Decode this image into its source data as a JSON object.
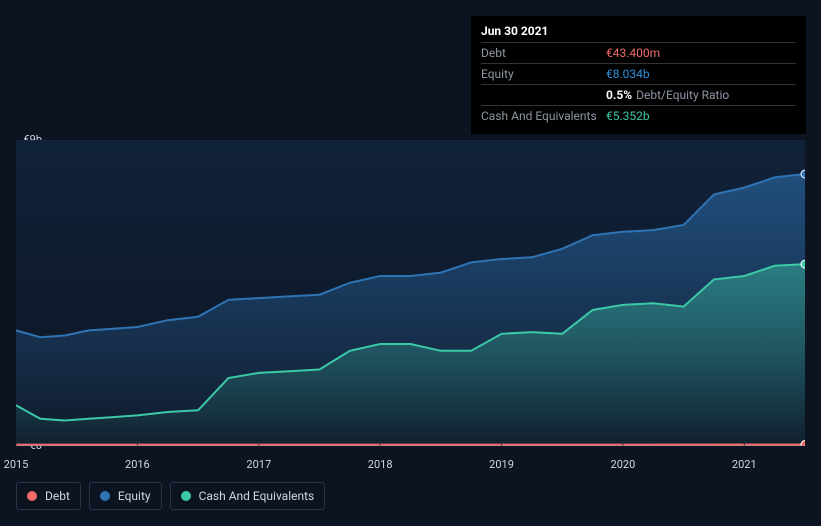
{
  "tooltip": {
    "title": "Jun 30 2021",
    "rows": [
      {
        "label": "Debt",
        "value": "€43.400m",
        "cls": "debt"
      },
      {
        "label": "Equity",
        "value": "€8.034b",
        "cls": "equity"
      },
      {
        "label": "",
        "value": "0.5%",
        "unit": "Debt/Equity Ratio",
        "cls": ""
      },
      {
        "label": "Cash And Equivalents",
        "value": "€5.352b",
        "cls": "cash"
      }
    ]
  },
  "chart": {
    "type": "area",
    "background": "#0d1421",
    "plot_bg_gradient_top": "#10223a",
    "plot_bg_gradient_bottom": "#0d1421",
    "ylim": [
      0,
      9
    ],
    "y_ticks": [
      {
        "v": 9,
        "label": "€9b"
      },
      {
        "v": 0,
        "label": "€0"
      }
    ],
    "x_start_year": 2015,
    "x_end_year": 2021.5,
    "x_ticks": [
      2015,
      2016,
      2017,
      2018,
      2019,
      2020,
      2021
    ],
    "grid_color": "#222b3a",
    "series": [
      {
        "name": "Equity",
        "color": "#2f74b5",
        "fill_top": "rgba(47,116,181,0.55)",
        "fill_bottom": "rgba(47,116,181,0.05)",
        "stroke_width": 2,
        "points": [
          [
            2015.0,
            3.4
          ],
          [
            2015.2,
            3.2
          ],
          [
            2015.4,
            3.25
          ],
          [
            2015.6,
            3.4
          ],
          [
            2015.8,
            3.45
          ],
          [
            2016.0,
            3.5
          ],
          [
            2016.25,
            3.7
          ],
          [
            2016.5,
            3.8
          ],
          [
            2016.75,
            4.3
          ],
          [
            2017.0,
            4.35
          ],
          [
            2017.25,
            4.4
          ],
          [
            2017.5,
            4.45
          ],
          [
            2017.75,
            4.8
          ],
          [
            2018.0,
            5.0
          ],
          [
            2018.25,
            5.0
          ],
          [
            2018.5,
            5.1
          ],
          [
            2018.75,
            5.4
          ],
          [
            2019.0,
            5.5
          ],
          [
            2019.25,
            5.55
          ],
          [
            2019.5,
            5.8
          ],
          [
            2019.75,
            6.2
          ],
          [
            2020.0,
            6.3
          ],
          [
            2020.25,
            6.35
          ],
          [
            2020.5,
            6.5
          ],
          [
            2020.75,
            7.4
          ],
          [
            2021.0,
            7.6
          ],
          [
            2021.25,
            7.9
          ],
          [
            2021.5,
            8.0
          ]
        ]
      },
      {
        "name": "Cash And Equivalents",
        "color": "#3cc9a7",
        "fill_top": "rgba(60,201,167,0.45)",
        "fill_bottom": "rgba(60,201,167,0.03)",
        "stroke_width": 2,
        "points": [
          [
            2015.0,
            1.2
          ],
          [
            2015.2,
            0.8
          ],
          [
            2015.4,
            0.75
          ],
          [
            2015.6,
            0.8
          ],
          [
            2015.8,
            0.85
          ],
          [
            2016.0,
            0.9
          ],
          [
            2016.25,
            1.0
          ],
          [
            2016.5,
            1.05
          ],
          [
            2016.75,
            2.0
          ],
          [
            2017.0,
            2.15
          ],
          [
            2017.25,
            2.2
          ],
          [
            2017.5,
            2.25
          ],
          [
            2017.75,
            2.8
          ],
          [
            2018.0,
            3.0
          ],
          [
            2018.25,
            3.0
          ],
          [
            2018.5,
            2.8
          ],
          [
            2018.75,
            2.8
          ],
          [
            2019.0,
            3.3
          ],
          [
            2019.25,
            3.35
          ],
          [
            2019.5,
            3.3
          ],
          [
            2019.75,
            4.0
          ],
          [
            2020.0,
            4.15
          ],
          [
            2020.25,
            4.2
          ],
          [
            2020.5,
            4.1
          ],
          [
            2020.75,
            4.9
          ],
          [
            2021.0,
            5.0
          ],
          [
            2021.25,
            5.3
          ],
          [
            2021.5,
            5.35
          ]
        ]
      },
      {
        "name": "Debt",
        "color": "#f46a6a",
        "fill_top": "rgba(244,106,106,0.6)",
        "fill_bottom": "rgba(244,106,106,0.2)",
        "stroke_width": 2,
        "points": [
          [
            2015.0,
            0.04
          ],
          [
            2016.0,
            0.04
          ],
          [
            2017.0,
            0.04
          ],
          [
            2018.0,
            0.04
          ],
          [
            2019.0,
            0.04
          ],
          [
            2020.0,
            0.04
          ],
          [
            2021.0,
            0.043
          ],
          [
            2021.5,
            0.043
          ]
        ]
      }
    ],
    "marker": {
      "x": 2021.5,
      "items": [
        {
          "series": "Equity",
          "y": 8.0,
          "color": "#2f74b5"
        },
        {
          "series": "Cash And Equivalents",
          "y": 5.35,
          "color": "#3cc9a7"
        },
        {
          "series": "Debt",
          "y": 0.043,
          "color": "#f46a6a"
        }
      ]
    }
  },
  "legend": [
    {
      "label": "Debt",
      "color": "#f46a6a"
    },
    {
      "label": "Equity",
      "color": "#2f74b5"
    },
    {
      "label": "Cash And Equivalents",
      "color": "#3cc9a7"
    }
  ]
}
